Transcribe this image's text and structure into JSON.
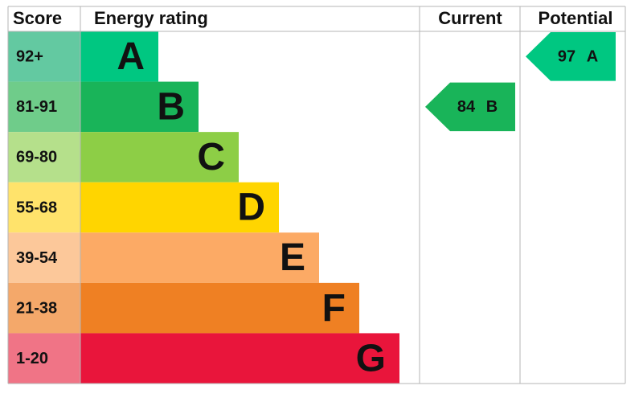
{
  "headers": [
    "Score",
    "Energy rating",
    "Current",
    "Potential"
  ],
  "bands": [
    {
      "score": "92+",
      "rating": "A",
      "color": "#00c781",
      "score_color": "#63c9a1"
    },
    {
      "score": "81-91",
      "rating": "B",
      "color": "#19b459",
      "score_color": "#6fcc8a"
    },
    {
      "score": "69-80",
      "rating": "C",
      "color": "#8dce46",
      "score_color": "#b5e08b"
    },
    {
      "score": "55-68",
      "rating": "D",
      "color": "#ffd500",
      "score_color": "#ffe36b"
    },
    {
      "score": "39-54",
      "rating": "E",
      "color": "#fcaa65",
      "score_color": "#fcc89a"
    },
    {
      "score": "21-38",
      "rating": "F",
      "color": "#ef8023",
      "score_color": "#f4a86a"
    },
    {
      "score": "1-20",
      "rating": "G",
      "color": "#e9153b",
      "score_color": "#f07486"
    }
  ],
  "current": {
    "value": 84,
    "rating": "B"
  },
  "potential": {
    "value": 97,
    "rating": "A"
  }
}
